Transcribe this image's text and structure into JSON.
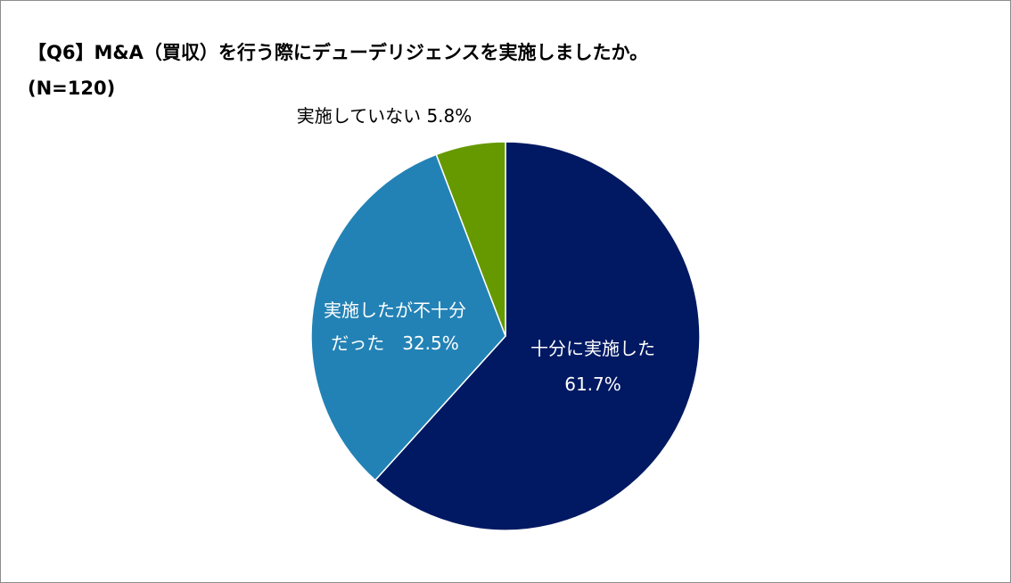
{
  "chart_data": {
    "type": "pie",
    "title": "【Q6】M&A（買収）を行う際にデューデリジェンスを実施しましたか。",
    "subtitle": "(N=120)",
    "slices": [
      {
        "label_lines": [
          "十分に実施した",
          "61.7%"
        ],
        "value": 61.7,
        "color": "#001962",
        "label_color": "#ffffff"
      },
      {
        "label_lines": [
          "実施したが不十分",
          "だった　32.5%"
        ],
        "value": 32.5,
        "color": "#2382b5",
        "label_color": "#ffffff"
      },
      {
        "label_lines": [
          "実施していない 5.8%"
        ],
        "value": 5.8,
        "color": "#669900",
        "label_color": "#000000"
      }
    ]
  }
}
